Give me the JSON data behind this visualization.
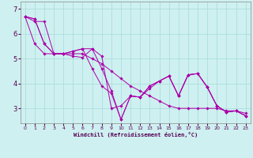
{
  "title": "",
  "xlabel": "Windchill (Refroidissement éolien,°C)",
  "ylabel": "",
  "bg_color": "#cff0f0",
  "grid_color": "#aadddd",
  "line_color": "#aa00aa",
  "marker": "D",
  "xlim": [
    -0.5,
    23.5
  ],
  "ylim": [
    2.4,
    7.3
  ],
  "yticks": [
    3,
    4,
    5,
    6,
    7
  ],
  "xticks": [
    0,
    1,
    2,
    3,
    4,
    5,
    6,
    7,
    8,
    9,
    10,
    11,
    12,
    13,
    14,
    15,
    16,
    17,
    18,
    19,
    20,
    21,
    22,
    23
  ],
  "series": [
    [
      6.7,
      6.6,
      5.6,
      5.2,
      5.2,
      5.3,
      5.4,
      5.4,
      4.6,
      3.7,
      2.55,
      3.5,
      3.45,
      3.9,
      4.1,
      4.3,
      3.5,
      4.35,
      4.4,
      3.85,
      3.1,
      2.85,
      2.9,
      2.7
    ],
    [
      6.7,
      6.6,
      5.6,
      5.2,
      5.2,
      5.3,
      5.4,
      4.6,
      3.9,
      3.6,
      2.55,
      3.5,
      3.45,
      3.9,
      4.1,
      4.3,
      3.5,
      4.35,
      4.4,
      3.85,
      3.1,
      2.85,
      2.9,
      2.7
    ],
    [
      6.7,
      5.6,
      5.2,
      5.2,
      5.2,
      5.2,
      5.2,
      5.0,
      4.8,
      4.5,
      4.2,
      3.9,
      3.7,
      3.5,
      3.3,
      3.1,
      3.0,
      3.0,
      3.0,
      3.0,
      3.0,
      2.9,
      2.9,
      2.8
    ],
    [
      6.7,
      6.5,
      6.5,
      5.2,
      5.2,
      5.1,
      5.05,
      5.4,
      5.1,
      3.0,
      3.1,
      3.5,
      3.45,
      3.8,
      4.1,
      4.3,
      3.5,
      4.35,
      4.4,
      3.85,
      3.1,
      2.85,
      2.9,
      2.7
    ]
  ]
}
